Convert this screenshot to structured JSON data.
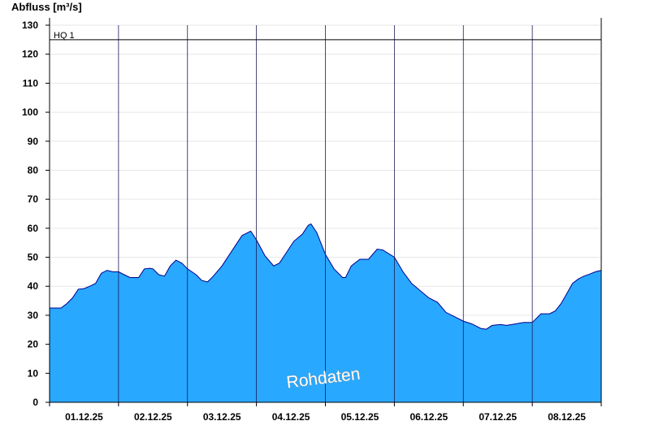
{
  "chart_data": {
    "type": "area",
    "ylabel": "Abfluss [m³/s]",
    "ylim": [
      0,
      130
    ],
    "yticks": [
      0,
      10,
      20,
      30,
      40,
      50,
      60,
      70,
      80,
      90,
      100,
      110,
      120,
      130
    ],
    "xlim": [
      "01.12.25 00:00",
      "09.12.25 00:00"
    ],
    "x_tick_labels": [
      "01.12.25",
      "02.12.25",
      "03.12.25",
      "04.12.25",
      "05.12.25",
      "06.12.25",
      "07.12.25",
      "08.12.25"
    ],
    "grid": true,
    "reference_line": {
      "label": "HQ 1",
      "value": 125
    },
    "series": [
      {
        "fill_color": "#29a8ff",
        "line_color": "#00008b",
        "points": [
          [
            "01.12.25 00:00",
            32.5
          ],
          [
            "01.12.25 04:00",
            32.5
          ],
          [
            "01.12.25 06:00",
            34
          ],
          [
            "01.12.25 08:00",
            36
          ],
          [
            "01.12.25 10:00",
            39
          ],
          [
            "01.12.25 12:00",
            39.2
          ],
          [
            "01.12.25 14:00",
            40
          ],
          [
            "01.12.25 16:00",
            41
          ],
          [
            "01.12.25 18:00",
            44.5
          ],
          [
            "01.12.25 20:00",
            45.5
          ],
          [
            "01.12.25 22:00",
            45
          ],
          [
            "02.12.25 00:00",
            45
          ],
          [
            "02.12.25 02:00",
            44
          ],
          [
            "02.12.25 04:00",
            43
          ],
          [
            "02.12.25 07:00",
            43
          ],
          [
            "02.12.25 09:00",
            46
          ],
          [
            "02.12.25 11:00",
            46.2
          ],
          [
            "02.12.25 12:00",
            46
          ],
          [
            "02.12.25 14:00",
            44
          ],
          [
            "02.12.25 16:00",
            43.5
          ],
          [
            "02.12.25 18:00",
            47
          ],
          [
            "02.12.25 20:00",
            49
          ],
          [
            "02.12.25 22:00",
            48
          ],
          [
            "03.12.25 00:00",
            46
          ],
          [
            "03.12.25 03:00",
            44
          ],
          [
            "03.12.25 05:00",
            42
          ],
          [
            "03.12.25 07:00",
            41.5
          ],
          [
            "03.12.25 09:00",
            43.5
          ],
          [
            "03.12.25 12:00",
            47
          ],
          [
            "03.12.25 16:00",
            53
          ],
          [
            "03.12.25 19:00",
            57.5
          ],
          [
            "03.12.25 21:00",
            58.5
          ],
          [
            "03.12.25 22:00",
            59
          ],
          [
            "04.12.25 00:00",
            56
          ],
          [
            "04.12.25 03:00",
            50.5
          ],
          [
            "04.12.25 06:00",
            47
          ],
          [
            "04.12.25 08:00",
            48
          ],
          [
            "04.12.25 10:00",
            51
          ],
          [
            "04.12.25 13:00",
            55.5
          ],
          [
            "04.12.25 16:00",
            58
          ],
          [
            "04.12.25 18:00",
            61
          ],
          [
            "04.12.25 19:00",
            61.5
          ],
          [
            "04.12.25 21:00",
            58.5
          ],
          [
            "05.12.25 00:00",
            51
          ],
          [
            "05.12.25 03:00",
            46
          ],
          [
            "05.12.25 06:00",
            43
          ],
          [
            "05.12.25 07:00",
            43
          ],
          [
            "05.12.25 09:00",
            47
          ],
          [
            "05.12.25 12:00",
            49.3
          ],
          [
            "05.12.25 15:00",
            49.3
          ],
          [
            "05.12.25 18:00",
            52.8
          ],
          [
            "05.12.25 20:00",
            52.5
          ],
          [
            "06.12.25 00:00",
            50
          ],
          [
            "06.12.25 03:00",
            45
          ],
          [
            "06.12.25 06:00",
            41
          ],
          [
            "06.12.25 12:00",
            36
          ],
          [
            "06.12.25 15:00",
            34.5
          ],
          [
            "06.12.25 18:00",
            31
          ],
          [
            "06.12.25 21:00",
            29.5
          ],
          [
            "07.12.25 00:00",
            28
          ],
          [
            "07.12.25 03:00",
            27
          ],
          [
            "07.12.25 06:00",
            25.5
          ],
          [
            "07.12.25 08:00",
            25.2
          ],
          [
            "07.12.25 10:00",
            26.5
          ],
          [
            "07.12.25 13:00",
            26.8
          ],
          [
            "07.12.25 15:00",
            26.5
          ],
          [
            "07.12.25 18:00",
            27
          ],
          [
            "07.12.25 21:00",
            27.5
          ],
          [
            "08.12.25 00:00",
            27.5
          ],
          [
            "08.12.25 03:00",
            30.5
          ],
          [
            "08.12.25 06:00",
            30.5
          ],
          [
            "08.12.25 08:00",
            31.5
          ],
          [
            "08.12.25 10:00",
            34
          ],
          [
            "08.12.25 12:00",
            37.5
          ],
          [
            "08.12.25 14:00",
            41
          ],
          [
            "08.12.25 16:00",
            42.5
          ],
          [
            "08.12.25 18:00",
            43.5
          ],
          [
            "08.12.25 20:00",
            44.2
          ],
          [
            "08.12.25 22:00",
            45
          ],
          [
            "09.12.25 00:00",
            45.5
          ]
        ]
      }
    ],
    "watermark": "Rohdaten"
  }
}
